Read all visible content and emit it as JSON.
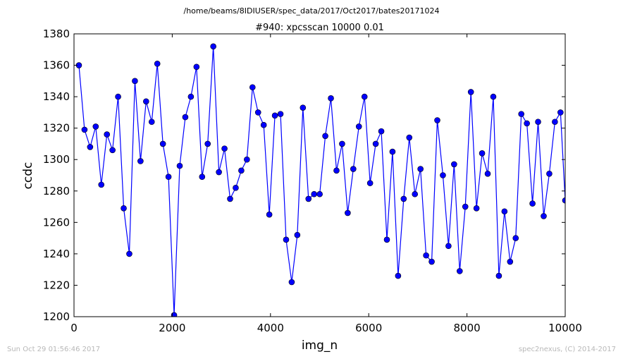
{
  "figure": {
    "suptitle": "/home/beams/8IDIUSER/spec_data/2017/Oct2017/bates20171024",
    "footer_left": "Sun Oct 29 01:56:46 2017",
    "footer_right": "spec2nexus, (C) 2014-2017"
  },
  "chart_data": {
    "type": "line",
    "title": "#940: xpcsscan 10000 0.01",
    "xlabel": "img_n",
    "ylabel": "ccdc",
    "xlim": [
      0,
      10000
    ],
    "ylim": [
      1200,
      1380
    ],
    "xticks": [
      0,
      2000,
      4000,
      6000,
      8000,
      10000
    ],
    "yticks": [
      1200,
      1220,
      1240,
      1260,
      1280,
      1300,
      1320,
      1340,
      1360,
      1380
    ],
    "grid": false,
    "line_color": "#0000ff",
    "marker": "circle",
    "marker_color": "#0000ff",
    "series": [
      {
        "x": [
          100,
          214,
          328,
          442,
          556,
          670,
          784,
          898,
          1012,
          1126,
          1240,
          1354,
          1468,
          1582,
          1696,
          1810,
          1924,
          2038,
          2152,
          2266,
          2380,
          2494,
          2608,
          2722,
          2836,
          2950,
          3064,
          3178,
          3292,
          3406,
          3520,
          3634,
          3748,
          3862,
          3976,
          4090,
          4204,
          4318,
          4432,
          4546,
          4660,
          4774,
          4888,
          5002,
          5116,
          5230,
          5344,
          5458,
          5572,
          5686,
          5800,
          5914,
          6028,
          6142,
          6256,
          6370,
          6484,
          6598,
          6712,
          6826,
          6940,
          7054,
          7168,
          7282,
          7396,
          7510,
          7624,
          7738,
          7852,
          7966,
          8080,
          8194,
          8308,
          8422,
          8536,
          8650,
          8764,
          8878,
          8992,
          9106,
          9220,
          9334,
          9448,
          9562,
          9676,
          9790,
          9904,
          10000
        ],
        "y": [
          1360,
          1319,
          1308,
          1321,
          1284,
          1316,
          1306,
          1340,
          1269,
          1240,
          1350,
          1299,
          1337,
          1324,
          1361,
          1310,
          1289,
          1201,
          1296,
          1327,
          1340,
          1359,
          1289,
          1310,
          1372,
          1292,
          1307,
          1275,
          1282,
          1293,
          1300,
          1346,
          1330,
          1322,
          1265,
          1328,
          1329,
          1249,
          1222,
          1252,
          1333,
          1275,
          1278,
          1278,
          1315,
          1339,
          1293,
          1310,
          1266,
          1294,
          1321,
          1340,
          1285,
          1310,
          1318,
          1249,
          1305,
          1226,
          1275,
          1314,
          1278,
          1294,
          1239,
          1235,
          1325,
          1290,
          1245,
          1297,
          1229,
          1270,
          1343,
          1269,
          1304,
          1291,
          1340,
          1226,
          1267,
          1235,
          1250,
          1329,
          1323,
          1272,
          1324,
          1264,
          1291,
          1324,
          1330,
          1274
        ]
      }
    ]
  }
}
